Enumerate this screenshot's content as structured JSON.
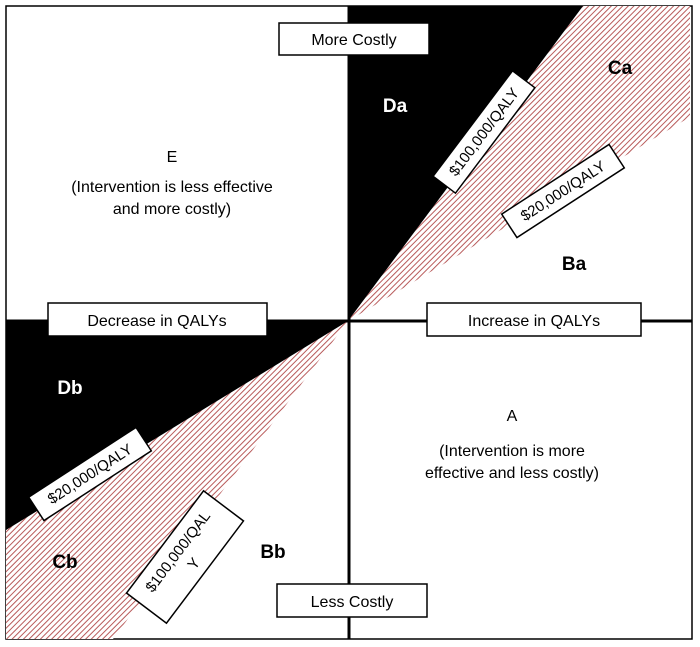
{
  "axes": {
    "top": "More Costly",
    "bottom": "Less Costly",
    "left": "Decrease in QALYs",
    "right": "Increase in QALYs"
  },
  "quadrants": {
    "E": {
      "title": "E",
      "line1": "(Intervention is less effective",
      "line2": "and more costly)"
    },
    "A": {
      "title": "A",
      "line1": "(Intervention is more",
      "line2": "effective and less costly)"
    }
  },
  "regions": {
    "Da": "Da",
    "Ca": "Ca",
    "Ba": "Ba",
    "Db": "Db",
    "Cb": "Cb",
    "Bb": "Bb"
  },
  "thresholds": {
    "upper_100k": "$100,000/QALY",
    "upper_20k": "$20,000/QALY",
    "lower_20k": "$20,000/QALY",
    "lower_100k_line1": "$100,000/QAL",
    "lower_100k_line2": "Y"
  },
  "colors": {
    "dominated": "#000000",
    "hatch_stripe": "#b85a5a",
    "hatch_bg": "#ffffff"
  }
}
